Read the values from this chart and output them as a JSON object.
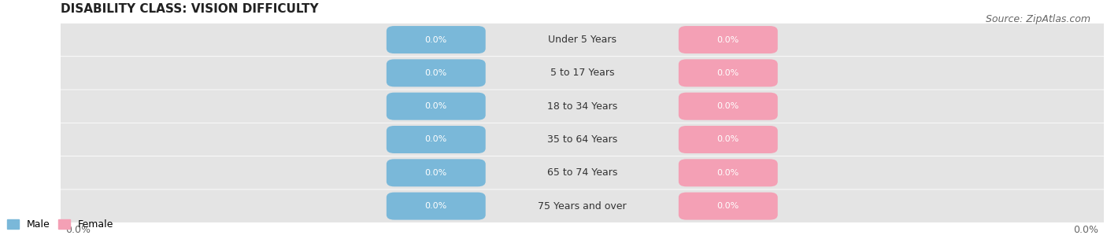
{
  "title": "DISABILITY CLASS: VISION DIFFICULTY",
  "source": "Source: ZipAtlas.com",
  "categories": [
    "Under 5 Years",
    "5 to 17 Years",
    "18 to 34 Years",
    "35 to 64 Years",
    "65 to 74 Years",
    "75 Years and over"
  ],
  "male_values": [
    0.0,
    0.0,
    0.0,
    0.0,
    0.0,
    0.0
  ],
  "female_values": [
    0.0,
    0.0,
    0.0,
    0.0,
    0.0,
    0.0
  ],
  "male_color": "#7ab8d9",
  "female_color": "#f4a0b5",
  "male_label": "Male",
  "female_label": "Female",
  "bar_bg_color": "#e4e4e4",
  "row_bg_color": "#f0f0f0",
  "label_color": "#ffffff",
  "title_fontsize": 11,
  "source_fontsize": 9,
  "tick_label_fontsize": 9,
  "bar_label_fontsize": 8,
  "category_fontsize": 9,
  "background_color": "#ffffff",
  "x_tick_label_left": "0.0%",
  "x_tick_label_right": "0.0%"
}
